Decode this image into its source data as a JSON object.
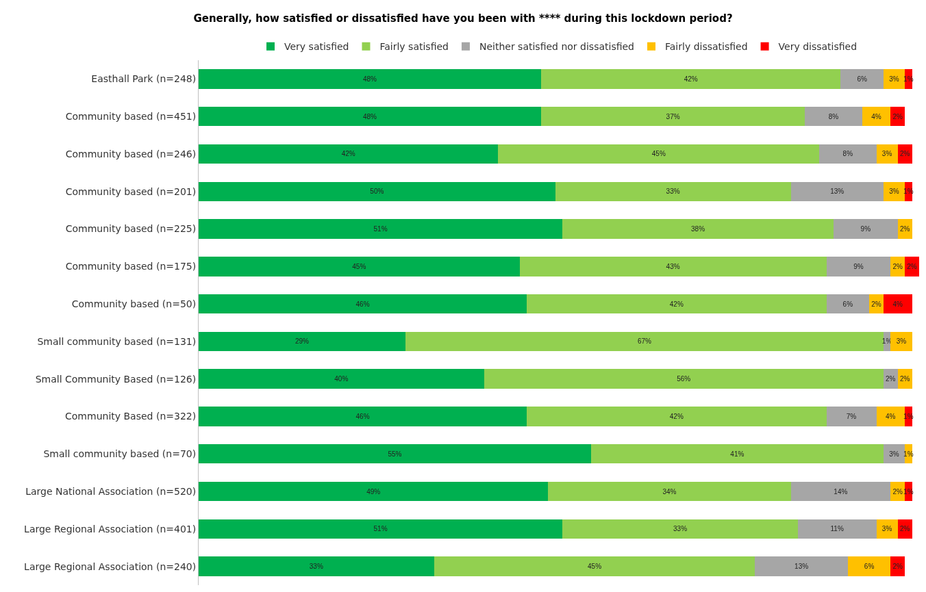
{
  "chart_data": {
    "type": "bar",
    "orientation": "horizontal",
    "stacked": true,
    "title": "Generally, how satisfied or dissatisfied have you been with **** during this lockdown period?",
    "categories": [
      "Easthall Park (n=248)",
      "Community based (n=451)",
      "Community based (n=246)",
      "Community based (n=201)",
      "Community based (n=225)",
      "Community based (n=175)",
      "Community based (n=50)",
      "Small community based (n=131)",
      "Small Community Based (n=126)",
      "Community Based (n=322)",
      "Small community based (n=70)",
      "Large National Association (n=520)",
      "Large Regional Association (n=401)",
      "Large Regional Association (n=240)"
    ],
    "series": [
      {
        "name": "Very satisfied",
        "color": "#00b050",
        "values": [
          48,
          48,
          42,
          50,
          51,
          45,
          46,
          29,
          40,
          46,
          55,
          49,
          51,
          33
        ],
        "value_labels": [
          "48%",
          "48%",
          "42%",
          "50%",
          "51%",
          "45%",
          "46%",
          "29%",
          "40%",
          "46%",
          "55%",
          "49%",
          "51%",
          "33%"
        ]
      },
      {
        "name": "Fairly satisfied",
        "color": "#92d050",
        "values": [
          42,
          37,
          45,
          33,
          38,
          43,
          42,
          67,
          56,
          42,
          41,
          34,
          33,
          45
        ],
        "value_labels": [
          "42%",
          "37%",
          "45%",
          "33%",
          "38%",
          "43%",
          "42%",
          "67%",
          "56%",
          "42%",
          "41%",
          "34%",
          "33%",
          "45%"
        ]
      },
      {
        "name": "Neither satisfied nor dissatisfied",
        "color": "#a6a6a6",
        "values": [
          6,
          8,
          8,
          13,
          9,
          9,
          6,
          1,
          2,
          7,
          3,
          14,
          11,
          13
        ],
        "value_labels": [
          "6%",
          "8%",
          "8%",
          "13%",
          "9%",
          "9%",
          "6%",
          "1%",
          "2%",
          "7%",
          "3%",
          "14%",
          "11%",
          "13%"
        ]
      },
      {
        "name": "Fairly dissatisfied",
        "color": "#ffc000",
        "values": [
          3,
          4,
          3,
          3,
          2,
          2,
          2,
          3,
          2,
          4,
          1,
          2,
          3,
          6
        ],
        "value_labels": [
          "3%",
          "4%",
          "3%",
          "3%",
          "2%",
          "2%",
          "2%",
          "3%",
          "2%",
          "4%",
          "1%",
          "2%",
          "3%",
          "6%"
        ]
      },
      {
        "name": "Very dissatisfied",
        "color": "#ff0000",
        "values": [
          1,
          2,
          2,
          1,
          null,
          2,
          4,
          null,
          null,
          1,
          null,
          1,
          2,
          2
        ],
        "value_labels": [
          "1%",
          "2%",
          "2%",
          "1%",
          null,
          "2%",
          "4%",
          null,
          null,
          "1%",
          null,
          "1%",
          "2%",
          "2%"
        ]
      }
    ],
    "xlim": [
      0,
      101
    ],
    "tick_labels": "y",
    "legend": "top",
    "grid": false
  }
}
